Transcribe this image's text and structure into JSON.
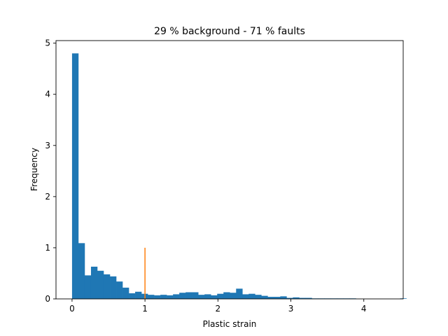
{
  "chart_data": {
    "type": "bar",
    "subtype": "histogram",
    "title": "29 % background - 71 % faults",
    "xlabel": "Plastic strain",
    "ylabel": "Frequency",
    "xlim": [
      -0.22,
      4.54
    ],
    "ylim": [
      0,
      5.05
    ],
    "xticks": [
      0,
      1,
      2,
      3,
      4
    ],
    "yticks": [
      0,
      1,
      2,
      3,
      4,
      5
    ],
    "grid": false,
    "legend": "none",
    "bin_start": 0.0,
    "bin_width": 0.0865,
    "values": [
      4.8,
      1.09,
      0.46,
      0.63,
      0.55,
      0.48,
      0.44,
      0.34,
      0.22,
      0.11,
      0.14,
      0.1,
      0.08,
      0.07,
      0.08,
      0.07,
      0.09,
      0.12,
      0.13,
      0.13,
      0.08,
      0.09,
      0.07,
      0.1,
      0.13,
      0.12,
      0.2,
      0.09,
      0.1,
      0.08,
      0.06,
      0.04,
      0.04,
      0.05,
      0.02,
      0.03,
      0.02,
      0.02,
      0.01,
      0.01,
      0.01,
      0.01,
      0.01,
      0.01,
      0.01,
      0.0,
      0.0,
      0.0,
      0.0,
      0.0,
      0.0,
      0.0,
      0.01
    ],
    "marker_line": {
      "x": 1.0,
      "y0": 0,
      "y1": 1.0
    },
    "colors": {
      "bars": "#1f77b4",
      "marker_line": "#ff7f0e"
    }
  }
}
